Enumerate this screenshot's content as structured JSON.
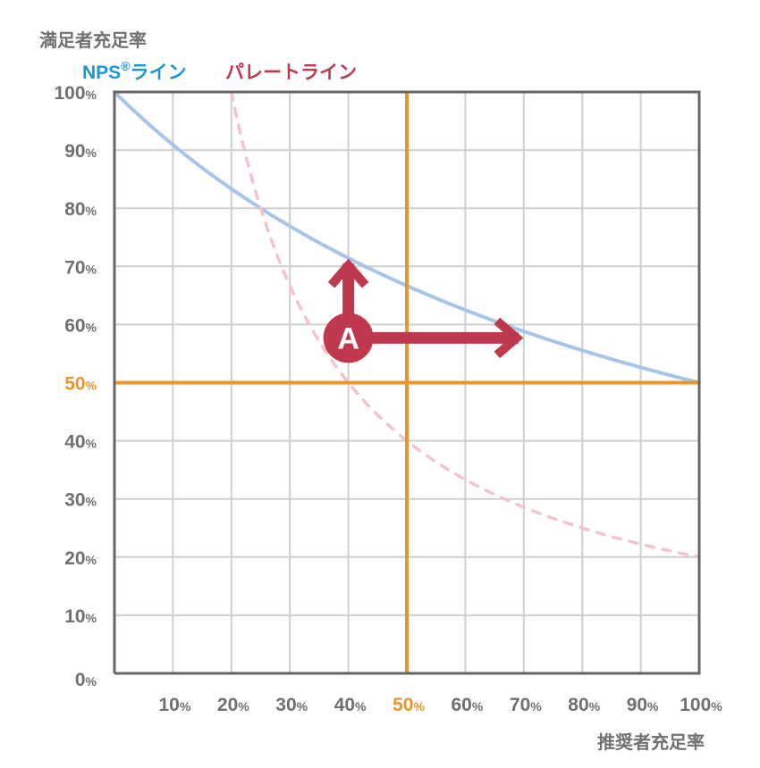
{
  "chart_data": {
    "type": "line",
    "ylabel": "満足者充足率",
    "xlabel": "推奨者充足率",
    "xlim": [
      0,
      100
    ],
    "ylim": [
      0,
      100
    ],
    "grid": true,
    "x_ticks": [
      10,
      20,
      30,
      40,
      50,
      60,
      70,
      80,
      90,
      100
    ],
    "y_ticks": [
      0,
      10,
      20,
      30,
      40,
      50,
      60,
      70,
      80,
      90,
      100
    ],
    "tick_suffix": "%",
    "highlight_tick": 50,
    "legend": [
      {
        "name": "NPS",
        "sup": "®",
        "suffix": "ライン",
        "color": "#1a96d4"
      },
      {
        "name": "パレートライン",
        "sup": "",
        "suffix": "",
        "color": "#c0384e"
      }
    ],
    "series": [
      {
        "name": "NPSライン",
        "style": "solid",
        "color": "#a6c5e8",
        "formula": "y = 100 / (1 + x/100)",
        "x": [
          0,
          10,
          20,
          30,
          40,
          50,
          60,
          70,
          80,
          90,
          100
        ],
        "y": [
          100,
          90.9,
          83.3,
          76.9,
          71.4,
          66.7,
          62.5,
          58.8,
          55.6,
          52.6,
          50
        ]
      },
      {
        "name": "パレートライン",
        "style": "dashed",
        "color": "#f4c3cb",
        "formula": "y = 2000 / x",
        "x": [
          20,
          25,
          30,
          40,
          50,
          60,
          70,
          80,
          90,
          100
        ],
        "y": [
          100,
          80,
          66.7,
          50,
          40,
          33.3,
          28.6,
          25,
          22.2,
          20
        ]
      }
    ],
    "reference_lines": [
      {
        "axis": "x",
        "value": 50,
        "color": "#e8962e"
      },
      {
        "axis": "y",
        "value": 50,
        "color": "#e8962e"
      }
    ],
    "annotations": [
      {
        "label": "A",
        "point": [
          40,
          57.7
        ],
        "color": "#c0384e",
        "arrow_up_to_y": 71.4,
        "arrow_right_to_x": 70
      }
    ]
  }
}
